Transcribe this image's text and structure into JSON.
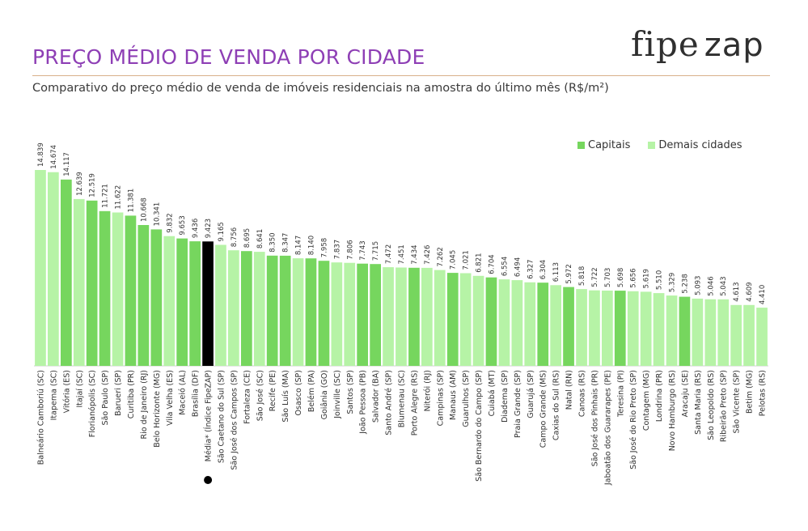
{
  "header": {
    "title": "PREÇO MÉDIO DE VENDA POR CIDADE",
    "subtitle": "Comparativo do preço médio de venda de imóveis residenciais na amostra do último mês (R$/m²)",
    "logo_part1": "fipe",
    "logo_part2": "zap"
  },
  "colors": {
    "capital": "#76d65e",
    "other": "#b6f3a6",
    "media": "#000000",
    "title": "#8e3fb5"
  },
  "chart_data": {
    "type": "bar",
    "legend": [
      {
        "key": "capital",
        "label": "Capitais"
      },
      {
        "key": "other",
        "label": "Demais cidades"
      }
    ],
    "legend_position": "top-right",
    "grid": false,
    "ylim": [
      0,
      15500
    ],
    "categories": [
      "Balneário Camboriú (SC)",
      "Itapema (SC)",
      "Vitória (ES)",
      "Itajaí (SC)",
      "Florianópolis (SC)",
      "São Paulo (SP)",
      "Barueri (SP)",
      "Curitiba (PR)",
      "Rio de Janeiro (RJ)",
      "Belo Horizonte (MG)",
      "Vila Velha (ES)",
      "Maceió (AL)",
      "Brasília (DF)",
      "Média* (Índice FipeZAP)",
      "São Caetano do Sul (SP)",
      "São José dos Campos (SP)",
      "Fortaleza (CE)",
      "São José (SC)",
      "Recife (PE)",
      "São Luís (MA)",
      "Osasco (SP)",
      "Belém (PA)",
      "Goiânia (GO)",
      "Joinville (SC)",
      "Santos (SP)",
      "João Pessoa (PB)",
      "Salvador (BA)",
      "Santo André (SP)",
      "Blumenau (SC)",
      "Porto Alegre (RS)",
      "Niterói (RJ)",
      "Campinas (SP)",
      "Manaus (AM)",
      "Guarulhos (SP)",
      "São Bernardo do Campo (SP)",
      "Cuiabá (MT)",
      "Diadema (SP)",
      "Praia Grande (SP)",
      "Guarujá (SP)",
      "Campo Grande (MS)",
      "Caxias do Sul (RS)",
      "Natal (RN)",
      "Canoas (RS)",
      "São José dos Pinhais (PR)",
      "Jaboatão dos Guararapes (PE)",
      "Teresina (PI)",
      "São José do Rio Preto (SP)",
      "Contagem (MG)",
      "Londrina (PR)",
      "Novo Hamburgo (RS)",
      "Aracaju (SE)",
      "Santa Maria (RS)",
      "São Leopoldo (RS)",
      "Ribeirão Preto (SP)",
      "São Vicente (SP)",
      "Betim (MG)",
      "Pelotas (RS)"
    ],
    "values": [
      14839,
      14674,
      14117,
      12639,
      12519,
      11721,
      11622,
      11381,
      10668,
      10341,
      9832,
      9653,
      9436,
      9423,
      9165,
      8756,
      8695,
      8641,
      8350,
      8347,
      8147,
      8140,
      7958,
      7837,
      7806,
      7743,
      7715,
      7472,
      7451,
      7434,
      7426,
      7262,
      7045,
      7021,
      6821,
      6704,
      6554,
      6494,
      6327,
      6304,
      6113,
      5972,
      5818,
      5722,
      5703,
      5698,
      5656,
      5619,
      5510,
      5329,
      5238,
      5093,
      5046,
      5043,
      4613,
      4609,
      4410
    ],
    "value_labels": [
      "14.839",
      "14.674",
      "14.117",
      "12.639",
      "12.519",
      "11.721",
      "11.622",
      "11.381",
      "10.668",
      "10.341",
      "9.832",
      "9.653",
      "9.436",
      "9.423",
      "9.165",
      "8.756",
      "8.695",
      "8.641",
      "8.350",
      "8.347",
      "8.147",
      "8.140",
      "7.958",
      "7.837",
      "7.806",
      "7.743",
      "7.715",
      "7.472",
      "7.451",
      "7.434",
      "7.426",
      "7.262",
      "7.045",
      "7.021",
      "6.821",
      "6.704",
      "6.554",
      "6.494",
      "6.327",
      "6.304",
      "6.113",
      "5.972",
      "5.818",
      "5.722",
      "5.703",
      "5.698",
      "5.656",
      "5.619",
      "5.510",
      "5.329",
      "5.238",
      "5.093",
      "5.046",
      "5.043",
      "4.613",
      "4.609",
      "4.410"
    ],
    "groups": [
      "other",
      "other",
      "capital",
      "other",
      "capital",
      "capital",
      "other",
      "capital",
      "capital",
      "capital",
      "other",
      "capital",
      "capital",
      "media",
      "other",
      "other",
      "capital",
      "other",
      "capital",
      "capital",
      "other",
      "capital",
      "capital",
      "other",
      "other",
      "capital",
      "capital",
      "other",
      "other",
      "capital",
      "other",
      "other",
      "capital",
      "other",
      "other",
      "capital",
      "other",
      "other",
      "other",
      "capital",
      "other",
      "capital",
      "other",
      "other",
      "other",
      "capital",
      "other",
      "other",
      "other",
      "other",
      "capital",
      "other",
      "other",
      "other",
      "other",
      "other",
      "other"
    ]
  }
}
